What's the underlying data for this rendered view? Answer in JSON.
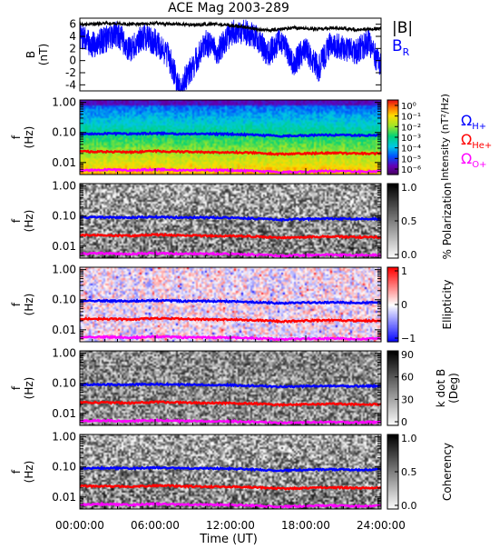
{
  "title": "ACE Mag 2003-289",
  "xlabel": "Time (UT)",
  "xticks": [
    "00:00:00",
    "06:00:00",
    "12:00:00",
    "18:00:00",
    "24:00:00"
  ],
  "colors": {
    "magnitude": "#000000",
    "radial": "#0000ff",
    "h_plus": "#0000ff",
    "he_plus": "#ff0000",
    "o_plus": "#ff00ff"
  },
  "chart_data": [
    {
      "type": "line",
      "panel": "field",
      "ylabel": "B (nT)",
      "ylabel_parts": [
        "B",
        "(nT)"
      ],
      "yticks": [
        "6",
        "4",
        "2",
        "0",
        "-2",
        "-4"
      ],
      "ylim": [
        -5,
        7
      ],
      "x_hours": [
        0,
        1,
        2,
        3,
        4,
        5,
        6,
        7,
        8,
        9,
        10,
        11,
        12,
        13,
        14,
        15,
        16,
        17,
        18,
        19,
        20,
        21,
        22,
        23,
        24
      ],
      "series": [
        {
          "name": "|B|",
          "values": [
            6.0,
            6.0,
            6.2,
            6.1,
            6.0,
            6.1,
            6.2,
            6.0,
            6.0,
            5.9,
            6.0,
            6.0,
            5.8,
            5.6,
            5.2,
            5.0,
            5.2,
            5.4,
            5.3,
            5.2,
            5.4,
            5.3,
            5.1,
            5.2,
            5.3
          ]
        },
        {
          "name": "B_R",
          "values": [
            4.0,
            2.5,
            3.5,
            4.5,
            1.5,
            4.0,
            3.0,
            1.0,
            -4.5,
            -1.0,
            3.0,
            1.5,
            4.5,
            5.0,
            4.0,
            1.0,
            3.5,
            -0.5,
            2.0,
            -1.5,
            3.0,
            2.0,
            1.5,
            3.0,
            -1.0
          ]
        }
      ],
      "legend": [
        {
          "label": "|B|",
          "sub": ""
        },
        {
          "label": "B",
          "sub": "R"
        }
      ]
    },
    {
      "type": "heatmap",
      "panel": "intensity",
      "ylabel": "f (Hz)",
      "ylabel_parts": [
        "f",
        "(Hz)"
      ],
      "yticks": [
        "1.00",
        "0.10",
        "0.01"
      ],
      "yscale": "log",
      "ylim": [
        0.004,
        1.2
      ],
      "colorbar_title": "Intensity (nT²/Hz)",
      "colorbar_ticks": [
        "10⁰",
        "10⁻¹",
        "10⁻²",
        "10⁻³",
        "10⁻⁴",
        "10⁻⁵",
        "10⁻⁶"
      ],
      "colorbar_range": [
        -6.5,
        0.3
      ],
      "legend": [
        {
          "label": "Ω",
          "sub": "H+"
        },
        {
          "label": "Ω",
          "sub": "He+"
        },
        {
          "label": "Ω",
          "sub": "O+"
        }
      ]
    },
    {
      "type": "heatmap",
      "panel": "polarization",
      "ylabel": "f (Hz)",
      "ylabel_parts": [
        "f",
        "(Hz)"
      ],
      "yticks": [
        "1.00",
        "0.10",
        "0.01"
      ],
      "yscale": "log",
      "ylim": [
        0.004,
        1.2
      ],
      "colorbar_title": "% Polarization",
      "colorbar_ticks": [
        "1.0",
        "0.5",
        "0.0"
      ],
      "colorbar_range": [
        0,
        1
      ]
    },
    {
      "type": "heatmap",
      "panel": "ellipticity",
      "ylabel": "f (Hz)",
      "ylabel_parts": [
        "f",
        "(Hz)"
      ],
      "yticks": [
        "1.00",
        "0.10",
        "0.01"
      ],
      "yscale": "log",
      "ylim": [
        0.004,
        1.2
      ],
      "colorbar_title": "Ellipticity",
      "colorbar_ticks": [
        "1",
        "0",
        "−1"
      ],
      "colorbar_range": [
        -1,
        1
      ]
    },
    {
      "type": "heatmap",
      "panel": "kdotb",
      "ylabel": "f (Hz)",
      "ylabel_parts": [
        "f",
        "(Hz)"
      ],
      "yticks": [
        "1.00",
        "0.10",
        "0.01"
      ],
      "yscale": "log",
      "ylim": [
        0.004,
        1.2
      ],
      "colorbar_title": "k dot B (Deg)",
      "colorbar_title_lines": [
        "k dot B",
        "(Deg)"
      ],
      "colorbar_ticks": [
        "90",
        "60",
        "30",
        "0"
      ],
      "colorbar_range": [
        0,
        90
      ]
    },
    {
      "type": "heatmap",
      "panel": "coherency",
      "ylabel": "f (Hz)",
      "ylabel_parts": [
        "f",
        "(Hz)"
      ],
      "yticks": [
        "1.00",
        "0.10",
        "0.01"
      ],
      "yscale": "log",
      "ylim": [
        0.004,
        1.2
      ],
      "colorbar_title": "Coherency",
      "colorbar_ticks": [
        "1.0",
        "0.5",
        "0.0"
      ],
      "colorbar_range": [
        0,
        1
      ]
    }
  ],
  "gyrofrequency_lines_hz": {
    "x_hours": [
      0,
      2,
      4,
      6,
      8,
      10,
      12,
      14,
      16,
      18,
      20,
      22,
      24
    ],
    "h_plus": [
      0.09,
      0.092,
      0.09,
      0.094,
      0.09,
      0.09,
      0.088,
      0.082,
      0.076,
      0.08,
      0.082,
      0.08,
      0.081
    ],
    "he_plus": [
      0.023,
      0.023,
      0.022,
      0.024,
      0.023,
      0.022,
      0.022,
      0.021,
      0.019,
      0.02,
      0.021,
      0.02,
      0.02
    ],
    "o_plus": [
      0.0056,
      0.0058,
      0.0055,
      0.0059,
      0.0056,
      0.0056,
      0.0055,
      0.0052,
      0.0048,
      0.005,
      0.0052,
      0.005,
      0.0051
    ]
  }
}
